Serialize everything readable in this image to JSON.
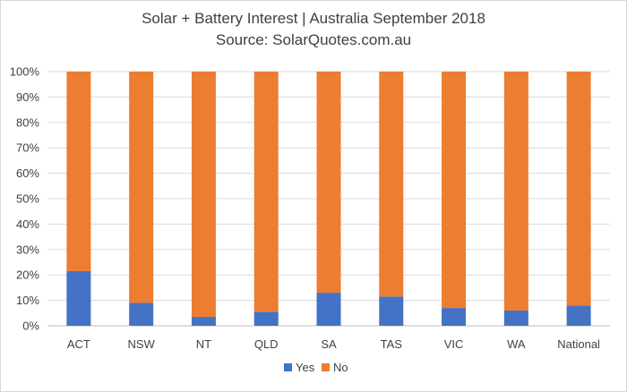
{
  "chart_data": {
    "type": "bar",
    "stacked": true,
    "title": "Solar + Battery Interest | Australia September 2018",
    "subtitle": "Source: SolarQuotes.com.au",
    "categories": [
      "ACT",
      "NSW",
      "NT",
      "QLD",
      "SA",
      "TAS",
      "VIC",
      "WA",
      "National"
    ],
    "series": [
      {
        "name": "Yes",
        "color": "#4472c4",
        "values": [
          21.5,
          9,
          3.5,
          5.5,
          13,
          11.5,
          7,
          6,
          8
        ]
      },
      {
        "name": "No",
        "color": "#ed7d31",
        "values": [
          78.5,
          91,
          96.5,
          94.5,
          87,
          88.5,
          93,
          94,
          92
        ]
      }
    ],
    "y_ticks": [
      "0%",
      "10%",
      "20%",
      "30%",
      "40%",
      "50%",
      "60%",
      "70%",
      "80%",
      "90%",
      "100%"
    ],
    "ylim": [
      0,
      100
    ],
    "grid": true,
    "legend_position": "bottom"
  }
}
